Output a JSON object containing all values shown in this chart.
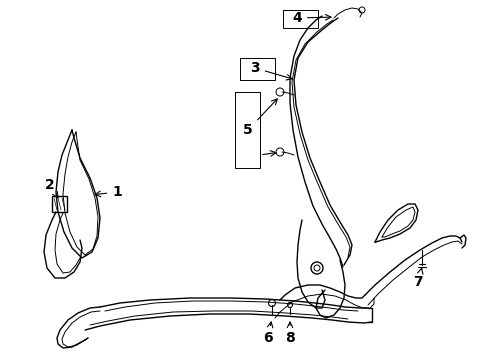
{
  "bg_color": "#ffffff",
  "line_color": "#000000",
  "lw": 1.0,
  "tlw": 0.7,
  "fs": 10,
  "fig_width": 4.89,
  "fig_height": 3.6,
  "dpi": 100
}
